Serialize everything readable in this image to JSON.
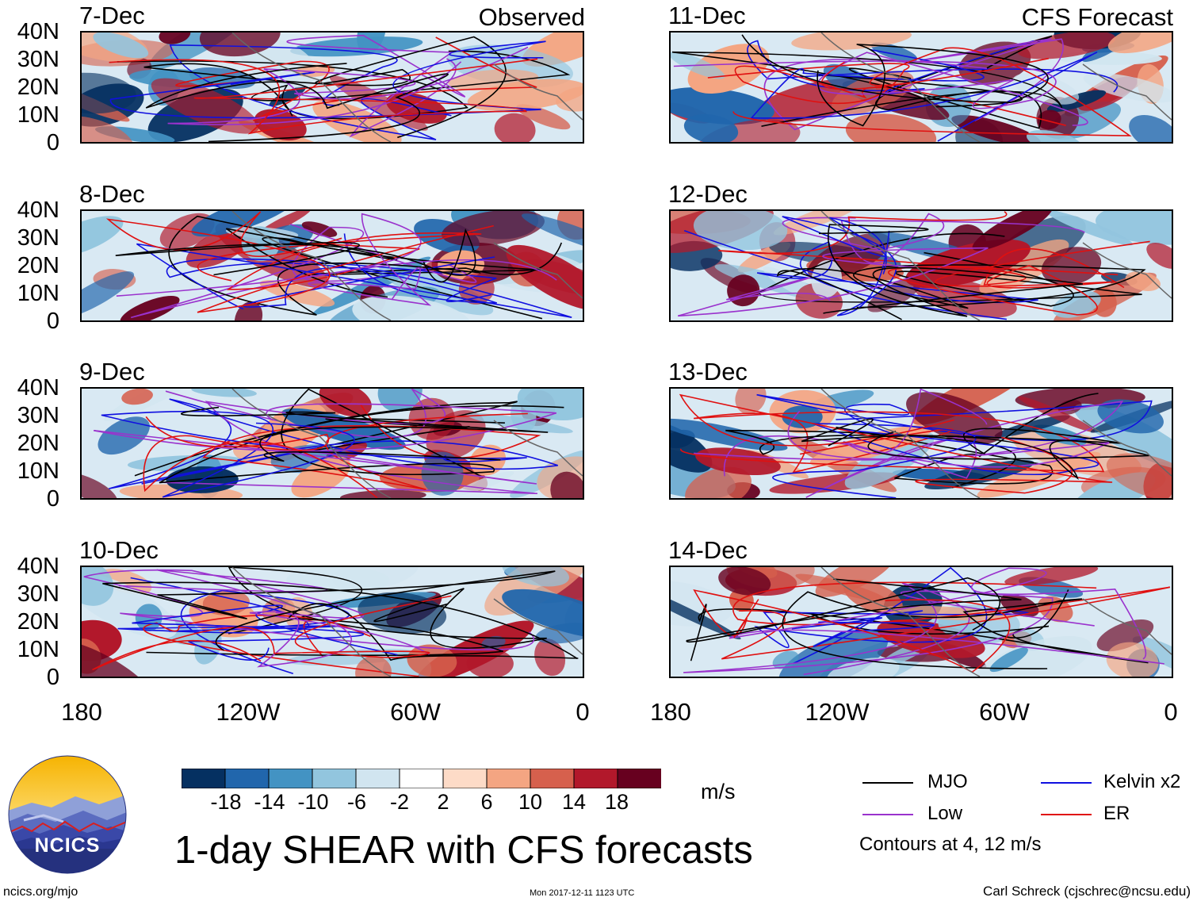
{
  "header": {
    "left_title": "Observed",
    "right_title": "CFS Forecast"
  },
  "observed_panels": [
    {
      "date": "7-Dec"
    },
    {
      "date": "8-Dec"
    },
    {
      "date": "9-Dec"
    },
    {
      "date": "10-Dec"
    }
  ],
  "forecast_panels": [
    {
      "date": "11-Dec"
    },
    {
      "date": "12-Dec"
    },
    {
      "date": "13-Dec"
    },
    {
      "date": "14-Dec"
    }
  ],
  "axes": {
    "lat_labels": [
      "40N",
      "30N",
      "20N",
      "10N",
      "0"
    ],
    "lon_labels": [
      "180",
      "120W",
      "60W",
      "0"
    ]
  },
  "colorbar": {
    "labels": [
      "-18",
      "-14",
      "-10",
      "-6",
      "-2",
      "2",
      "6",
      "10",
      "14",
      "18"
    ],
    "units": "m/s",
    "colors": [
      "#053061",
      "#2166ac",
      "#4393c3",
      "#92c5de",
      "#d1e5f0",
      "#ffffff",
      "#fddbc7",
      "#f4a582",
      "#d6604d",
      "#b2182b",
      "#67001f"
    ]
  },
  "title": "1-day SHEAR with CFS forecasts",
  "legend": {
    "items": [
      {
        "label": "MJO",
        "color": "#000000"
      },
      {
        "label": "Kelvin x2",
        "color": "#1010e0"
      },
      {
        "label": "Low",
        "color": "#9a32cd"
      },
      {
        "label": "ER",
        "color": "#e01010"
      }
    ],
    "contours_note": "Contours at 4, 12 m/s"
  },
  "logo": {
    "text": "NCICS"
  },
  "footer": {
    "url": "ncics.org/mjo",
    "timestamp": "Mon 2017-12-11 1123 UTC",
    "credit": "Carl Schreck (cjschrec@ncsu.edu)"
  }
}
